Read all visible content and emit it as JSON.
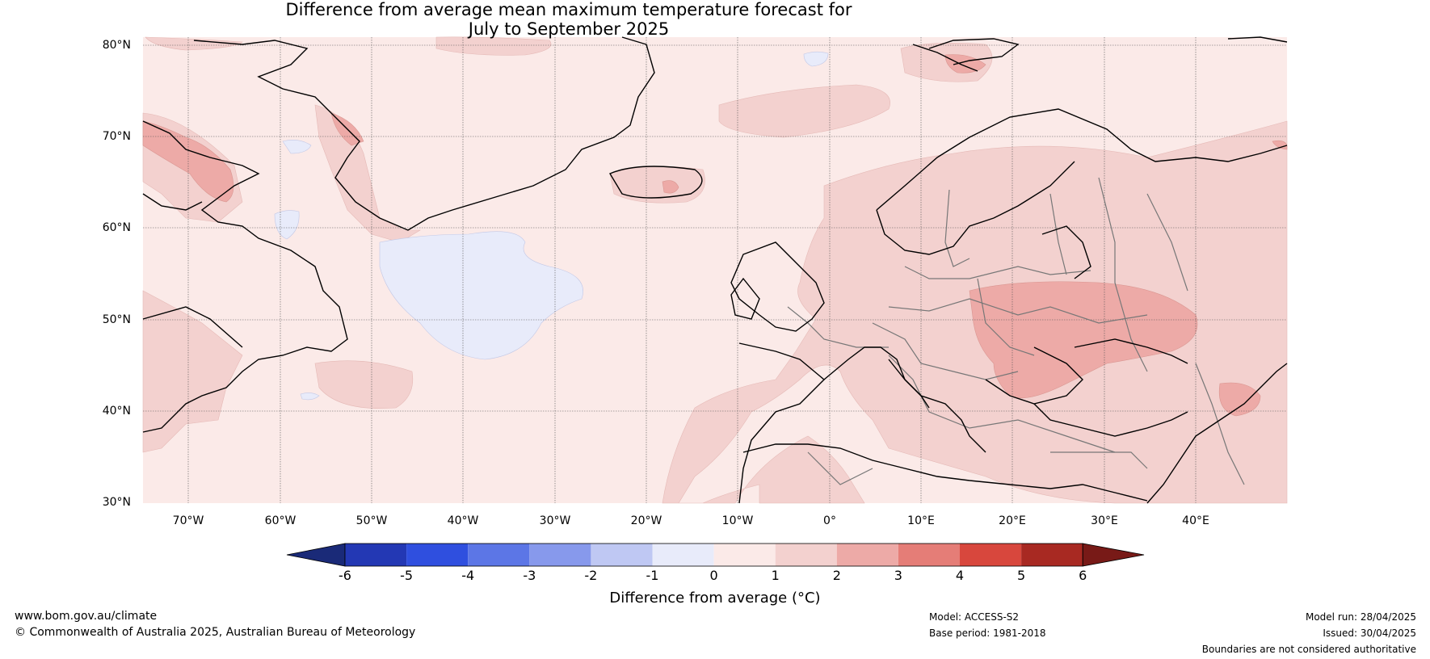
{
  "title": {
    "line1": "Difference from average mean maximum temperature forecast for",
    "line2": "July to September 2025"
  },
  "y_axis": [
    "80°N",
    "70°N",
    "60°N",
    "50°N",
    "40°N",
    "30°N"
  ],
  "x_axis": [
    "70°W",
    "60°W",
    "50°W",
    "40°W",
    "30°W",
    "20°W",
    "10°W",
    "0°",
    "10°E",
    "20°E",
    "30°E",
    "40°E"
  ],
  "colorbar": {
    "ticks": [
      "-6",
      "-5",
      "-4",
      "-3",
      "-2",
      "-1",
      "0",
      "1",
      "2",
      "3",
      "4",
      "5",
      "6"
    ],
    "label": "Difference from average (°C)",
    "colors": [
      "#1a2a78",
      "#2338b4",
      "#2f4fdf",
      "#5c76e6",
      "#8799ec",
      "#bfc8f3",
      "#e8ebfa",
      "#fbeae8",
      "#f3d1cf",
      "#edaaa7",
      "#e57d77",
      "#d8473d",
      "#a82922",
      "#781a17"
    ]
  },
  "footer": {
    "website": "www.bom.gov.au/climate",
    "copyright": "© Commonwealth of Australia 2025, Australian Bureau of Meteorology",
    "model": "Model: ACCESS-S2",
    "base_period": "Base period: 1981-2018",
    "model_run": "Model run: 28/04/2025",
    "issued": "Issued: 30/04/2025",
    "disclaimer": "Boundaries are not considered authoritative"
  }
}
